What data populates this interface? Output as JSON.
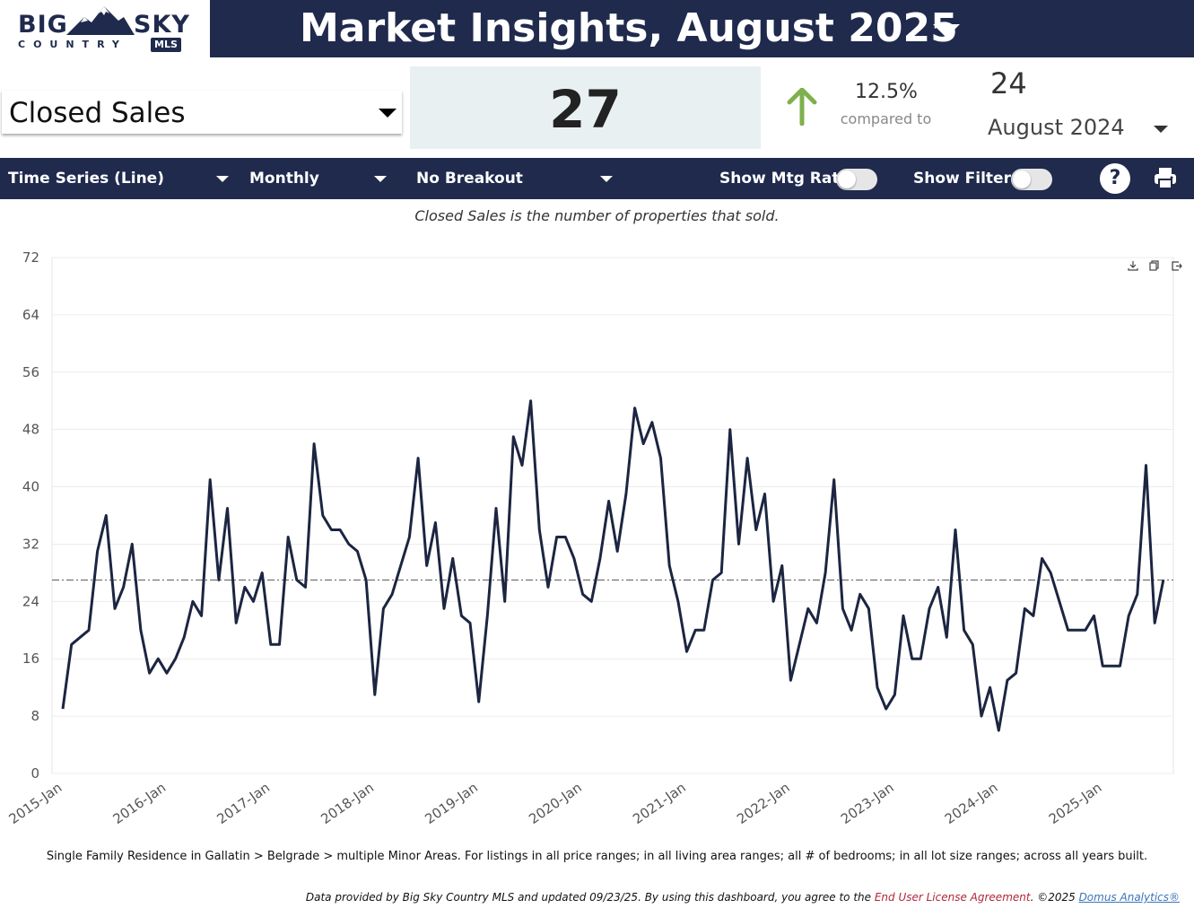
{
  "brand": {
    "word1": "BIG",
    "word2": "SKY",
    "word3": "COUNTRY",
    "badge": "MLS"
  },
  "header": {
    "title": "Market Insights, August 2025"
  },
  "metric": {
    "selected": "Closed Sales",
    "value": "27",
    "change_pct": "12.5%",
    "compared_label": "compared to",
    "compare_value": "24",
    "compare_period": "August 2024",
    "change_direction": "up",
    "up_color": "#7fb04f"
  },
  "toolbar": {
    "chart_type": "Time Series (Line)",
    "interval": "Monthly",
    "breakout": "No Breakout",
    "show_mtg_rate": "Show Mtg Rate:",
    "show_filters": "Show Filters:",
    "mtg_rate_on": false,
    "filters_on": false,
    "help_glyph": "?"
  },
  "description": "Closed Sales is the number of properties that sold.",
  "chart_data": {
    "type": "line",
    "ylim": [
      0,
      72
    ],
    "yticks": [
      0,
      8,
      16,
      24,
      32,
      40,
      48,
      56,
      64,
      72
    ],
    "x_tick_labels": [
      "2015-Jan",
      "2016-Jan",
      "2017-Jan",
      "2018-Jan",
      "2019-Jan",
      "2020-Jan",
      "2021-Jan",
      "2022-Jan",
      "2023-Jan",
      "2024-Jan",
      "2025-Jan"
    ],
    "reference_line": 27,
    "line_color": "#1c2541",
    "grid": true,
    "legend": "none",
    "series": [
      {
        "values": [
          9,
          18,
          19,
          20,
          31,
          36,
          23,
          26,
          32,
          20,
          14,
          16,
          14,
          16,
          19,
          24,
          22,
          41,
          27,
          37,
          21,
          26,
          24,
          28,
          18,
          18,
          33,
          27,
          26,
          46,
          36,
          34,
          34,
          32,
          31,
          27,
          11,
          23,
          25,
          29,
          33,
          44,
          29,
          35,
          23,
          30,
          22,
          21,
          10,
          22,
          37,
          24,
          47,
          43,
          52,
          34,
          26,
          33,
          33,
          30,
          25,
          24,
          30,
          38,
          31,
          39,
          51,
          46,
          49,
          44,
          29,
          24,
          17,
          20,
          20,
          27,
          28,
          48,
          32,
          44,
          34,
          39,
          24,
          29,
          13,
          18,
          23,
          21,
          28,
          41,
          23,
          20,
          25,
          23,
          12,
          9,
          11,
          22,
          16,
          16,
          23,
          26,
          19,
          34,
          20,
          18,
          8,
          12,
          6,
          13,
          14,
          23,
          22,
          30,
          28,
          24,
          20,
          20,
          20,
          22,
          15,
          15,
          15,
          22,
          25,
          43,
          21,
          27
        ]
      }
    ]
  },
  "filters_note": "Single Family Residence in Gallatin > Belgrade > multiple Minor Areas. For listings in all price ranges; in all living area ranges; all # of bedrooms; in all lot size ranges; across all years built.",
  "footer": {
    "text1": "Data provided by Big Sky Country MLS and updated 09/23/25.  By using this dashboard, you agree to the ",
    "eula": "End User License Agreement",
    "text2": ".  ©2025 ",
    "domus": "Domus Analytics®"
  }
}
